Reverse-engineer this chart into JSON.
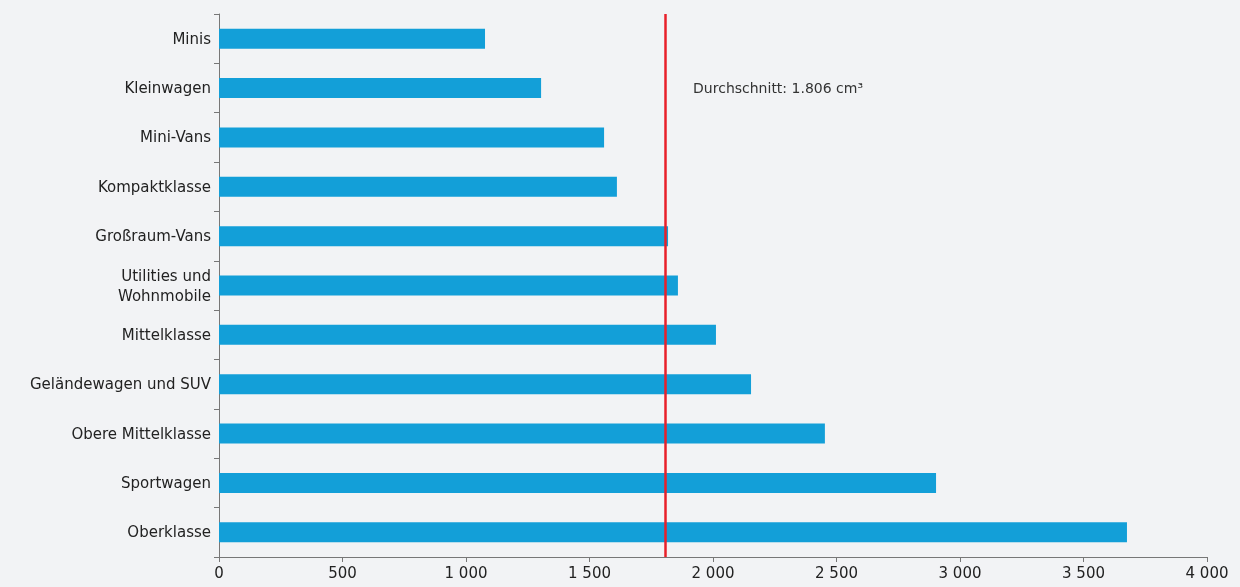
{
  "chart_data": {
    "type": "bar",
    "orientation": "horizontal",
    "categories": [
      "Minis",
      "Kleinwagen",
      "Mini-Vans",
      "Kompaktklasse",
      "Großraum-Vans",
      "Utilities und\nWohnmobile",
      "Mittelklasse",
      "Geländewagen und SUV",
      "Obere Mittelklasse",
      "Sportwagen",
      "Oberklasse"
    ],
    "values": [
      1077,
      1304,
      1559,
      1611,
      1818,
      1858,
      2012,
      2154,
      2453,
      2903,
      3676
    ],
    "color": "#139fd8",
    "xlim": [
      0,
      4000
    ],
    "xticks": [
      0,
      500,
      {
        "value": 1000,
        "label": "1 000"
      },
      {
        "value": 1500,
        "label": "1 500"
      },
      {
        "value": 2000,
        "label": "2 000"
      },
      {
        "value": 2500,
        "label": "2 500"
      },
      {
        "value": 3000,
        "label": "3 000"
      },
      {
        "value": 3500,
        "label": "3 500"
      },
      {
        "value": 4000,
        "label": "4 000"
      }
    ],
    "ref_lines": [
      {
        "axis": "x",
        "value": 1806,
        "label": "Durchschnitt: 1.806 cm³",
        "color": "#e8202a"
      }
    ],
    "grid": false
  }
}
